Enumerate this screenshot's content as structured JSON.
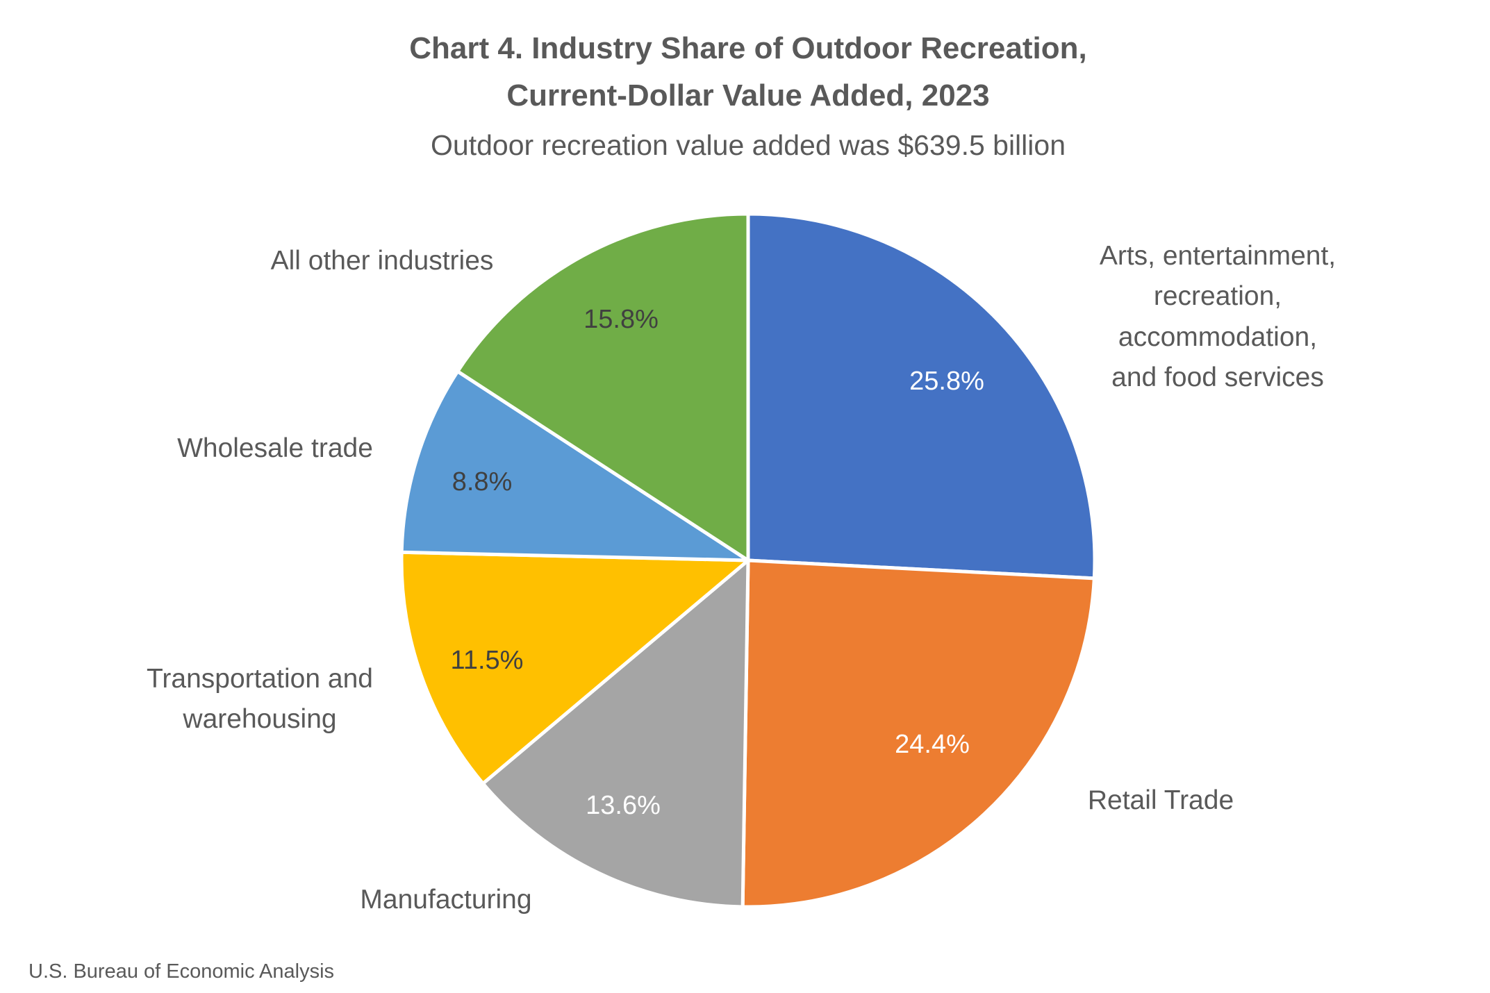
{
  "chart_data": {
    "type": "pie",
    "title": [
      "Chart 4. Industry Share of Outdoor Recreation,",
      "Current-Dollar Value Added, 2023"
    ],
    "subtitle": "Outdoor recreation value added was $639.5 billion",
    "source": "U.S. Bureau of Economic Analysis",
    "unit": "percent",
    "start_angle": "12 o'clock, clockwise",
    "slices": [
      {
        "label": [
          "Arts, entertainment,",
          "recreation,",
          "accommodation,",
          "and food services"
        ],
        "value": 25.8,
        "value_label": "25.8%",
        "color": "#4472C4",
        "label_color": "#FFFFFF"
      },
      {
        "label": [
          "Retail Trade"
        ],
        "value": 24.4,
        "value_label": "24.4%",
        "color": "#ED7D31",
        "label_color": "#FFFFFF"
      },
      {
        "label": [
          "Manufacturing"
        ],
        "value": 13.6,
        "value_label": "13.6%",
        "color": "#A5A5A5",
        "label_color": "#FFFFFF"
      },
      {
        "label": [
          "Transportation and",
          "warehousing"
        ],
        "value": 11.5,
        "value_label": "11.5%",
        "color": "#FFC000",
        "label_color": "#404040"
      },
      {
        "label": [
          "Wholesale trade"
        ],
        "value": 8.8,
        "value_label": "8.8%",
        "color": "#5B9BD5",
        "label_color": "#404040"
      },
      {
        "label": [
          "All other industries"
        ],
        "value": 15.8,
        "value_label": "15.8%",
        "color": "#70AD47",
        "label_color": "#404040"
      }
    ]
  }
}
